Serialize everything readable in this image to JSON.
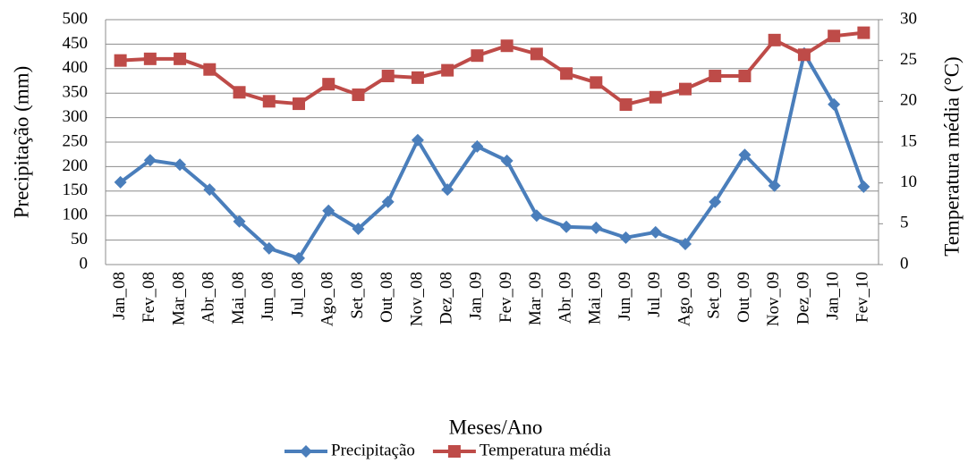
{
  "chart_data": {
    "type": "line",
    "x_label": "Meses/Ano",
    "y_label": "Precipitação (mm)",
    "y2_label": "Temperatura média (°C)",
    "categories": [
      "Jan_08",
      "Fev_08",
      "Mar_08",
      "Abr_08",
      "Mai_08",
      "Jun_08",
      "Jul_08",
      "Ago_08",
      "Set_08",
      "Out_08",
      "Nov_08",
      "Dez_08",
      "Jan_09",
      "Fev_09",
      "Mar_09",
      "Abr_09",
      "Mai_09",
      "Jun_09",
      "Jul_09",
      "Ago_09",
      "Set_09",
      "Out_09",
      "Nov_09",
      "Dez_09",
      "Jan_10",
      "Fev_10"
    ],
    "series": [
      {
        "name": "Precipitação",
        "color": "#4a7ebb",
        "marker": "diamond",
        "axis": "y",
        "values": [
          168,
          213,
          204,
          153,
          88,
          33,
          13,
          110,
          73,
          128,
          254,
          153,
          241,
          212,
          100,
          77,
          75,
          55,
          66,
          42,
          128,
          224,
          161,
          431,
          327,
          159
        ]
      },
      {
        "name": "Temperatura média",
        "color": "#be4b48",
        "marker": "square",
        "axis": "y2",
        "values": [
          25.0,
          25.2,
          25.2,
          23.9,
          21.1,
          20.0,
          19.7,
          22.1,
          20.8,
          23.1,
          22.9,
          23.8,
          25.6,
          26.8,
          25.8,
          23.4,
          22.3,
          19.6,
          20.5,
          21.5,
          23.1,
          23.1,
          27.5,
          25.7,
          28.0,
          28.4
        ]
      }
    ],
    "ylim": [
      0,
      500
    ],
    "yticks": [
      0,
      50,
      100,
      150,
      200,
      250,
      300,
      350,
      400,
      450,
      500
    ],
    "y2lim": [
      0,
      30
    ],
    "y2ticks": [
      0,
      5,
      10,
      15,
      20,
      25,
      30
    ],
    "grid": true,
    "legend": "bottom"
  }
}
